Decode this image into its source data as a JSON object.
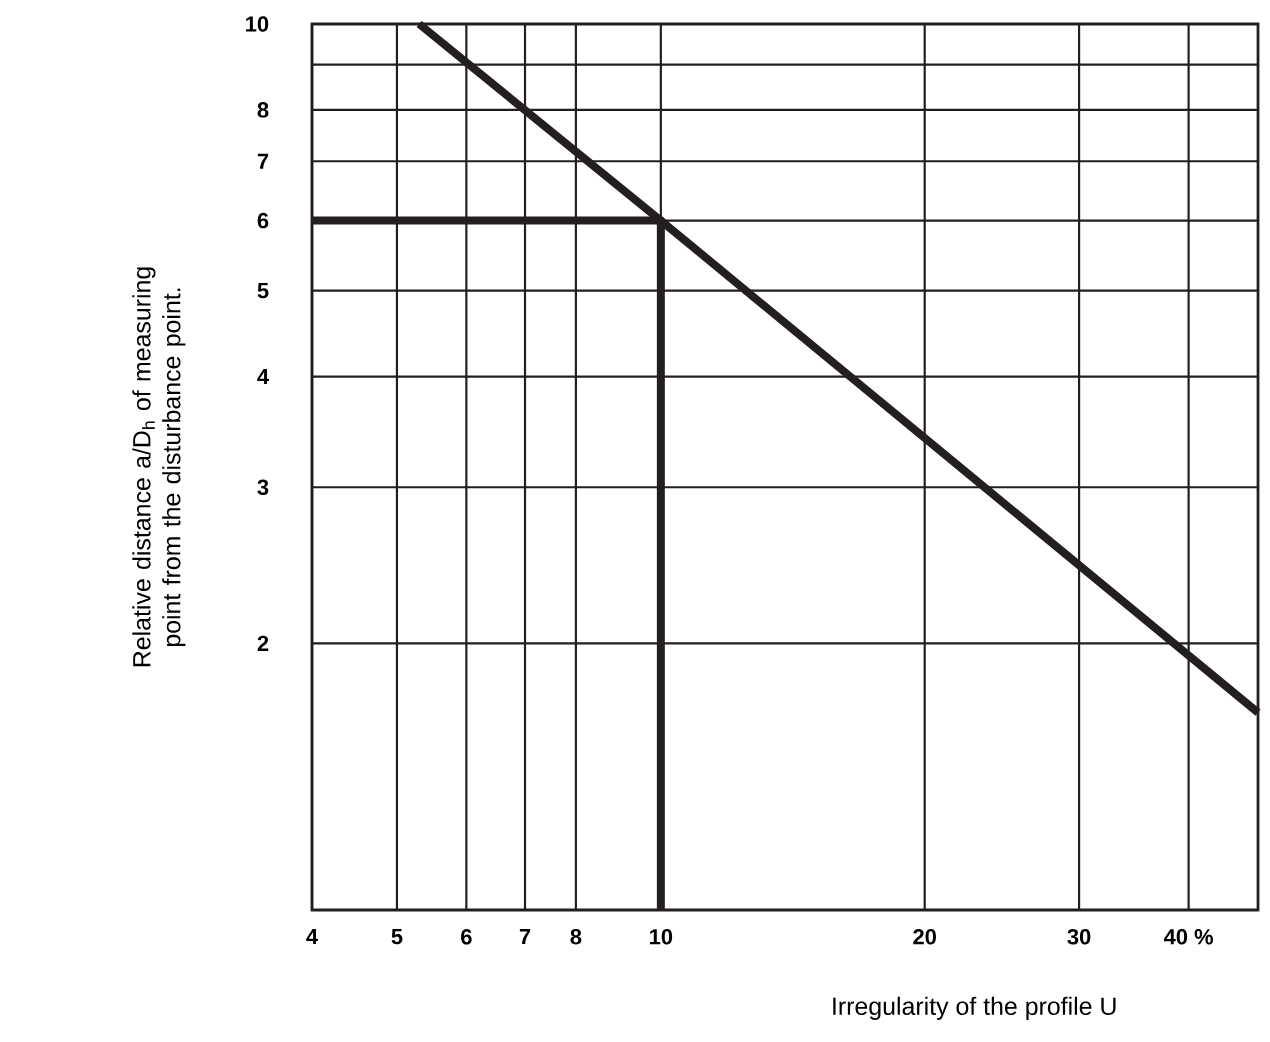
{
  "chart_data": {
    "type": "line",
    "xlabel": "Irregularity of the profile U",
    "ylabel": "Relative distance a/D$_{h}$ of measuring point from the disturbance point.",
    "log": "xy",
    "grid": true,
    "marker": "none",
    "line_style": "solid",
    "xlim": [
      4,
      48
    ],
    "ylim": [
      1,
      10
    ],
    "xticks": [
      4,
      5,
      6,
      7,
      8,
      10,
      20,
      30,
      {
        "value": 40,
        "label": "40 %"
      }
    ],
    "yticks": [
      2,
      3,
      4,
      5,
      6,
      7,
      8,
      {
        "value": 9,
        "label": null
      },
      10
    ],
    "series": [
      {
        "color": "#231f20",
        "x": [
          5.3,
          10,
          48
        ],
        "values": [
          10,
          6,
          1.67
        ]
      },
      {
        "color": "#231f20",
        "x": [
          4,
          10,
          10
        ],
        "values": [
          6,
          6,
          1
        ]
      }
    ]
  }
}
